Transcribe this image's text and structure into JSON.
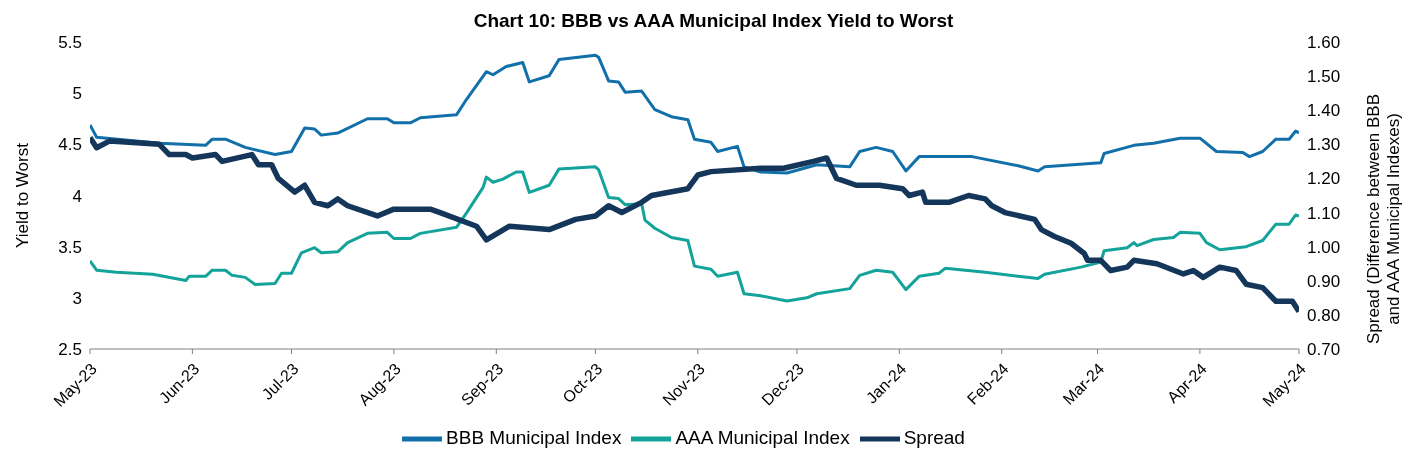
{
  "chart_data": {
    "type": "line",
    "title": "Chart 10: BBB vs AAA Municipal Index Yield to Worst",
    "ylabel": "Yield to Worst",
    "y2label": "Spread (Difference between BBB and AAA Municipal Indexes)",
    "xlim": [
      "2023-05-01",
      "2024-05-01"
    ],
    "xticks": [
      {
        "value": "2023-05-01",
        "label": "May-23"
      },
      {
        "value": "2023-06-01",
        "label": "Jun-23"
      },
      {
        "value": "2023-07-01",
        "label": "Jul-23"
      },
      {
        "value": "2023-08-01",
        "label": "Aug-23"
      },
      {
        "value": "2023-09-01",
        "label": "Sep-23"
      },
      {
        "value": "2023-10-01",
        "label": "Oct-23"
      },
      {
        "value": "2023-11-01",
        "label": "Nov-23"
      },
      {
        "value": "2023-12-01",
        "label": "Dec-23"
      },
      {
        "value": "2024-01-01",
        "label": "Jan-24"
      },
      {
        "value": "2024-02-01",
        "label": "Feb-24"
      },
      {
        "value": "2024-03-01",
        "label": "Mar-24"
      },
      {
        "value": "2024-04-01",
        "label": "Apr-24"
      },
      {
        "value": "2024-05-01",
        "label": "May-24"
      }
    ],
    "ylim": [
      2.5,
      5.5
    ],
    "yticks": [
      2.5,
      3,
      3.5,
      4,
      4.5,
      5,
      5.5
    ],
    "y2lim": [
      0.7,
      1.6
    ],
    "y2ticks": [
      {
        "value": 0.7,
        "label": "0.70"
      },
      {
        "value": 0.8,
        "label": "0.80"
      },
      {
        "value": 0.9,
        "label": "0.90"
      },
      {
        "value": 1.0,
        "label": "1.00"
      },
      {
        "value": 1.1,
        "label": "1.10"
      },
      {
        "value": 1.2,
        "label": "1.20"
      },
      {
        "value": 1.3,
        "label": "1.30"
      },
      {
        "value": 1.4,
        "label": "1.40"
      },
      {
        "value": 1.5,
        "label": "1.50"
      },
      {
        "value": 1.6,
        "label": "1.60"
      }
    ],
    "grid": false,
    "legend": "bottom",
    "marker": "none",
    "line_style": "solid",
    "series": [
      {
        "name": "BBB Municipal Index",
        "color": "#1170aa",
        "x": [
          "2023-05-01",
          "2023-05-03",
          "2023-05-22",
          "2023-06-05",
          "2023-06-07",
          "2023-06-11",
          "2023-06-17",
          "2023-06-26",
          "2023-07-01",
          "2023-07-05",
          "2023-07-08",
          "2023-07-10",
          "2023-07-15",
          "2023-07-24",
          "2023-07-30",
          "2023-08-01",
          "2023-08-06",
          "2023-08-09",
          "2023-08-20",
          "2023-08-23",
          "2023-08-29",
          "2023-08-31",
          "2023-09-04",
          "2023-09-09",
          "2023-09-11",
          "2023-09-17",
          "2023-09-20",
          "2023-10-01",
          "2023-10-02",
          "2023-10-05",
          "2023-10-08",
          "2023-10-10",
          "2023-10-15",
          "2023-10-19",
          "2023-10-24",
          "2023-10-29",
          "2023-10-31",
          "2023-11-05",
          "2023-11-07",
          "2023-11-13",
          "2023-11-15",
          "2023-11-20",
          "2023-11-28",
          "2023-12-07",
          "2023-12-17",
          "2023-12-20",
          "2023-12-25",
          "2023-12-30",
          "2024-01-03",
          "2024-01-07",
          "2024-01-23",
          "2024-02-06",
          "2024-02-12",
          "2024-02-14",
          "2024-03-02",
          "2024-03-03",
          "2024-03-12",
          "2024-03-18",
          "2024-03-26",
          "2024-04-01",
          "2024-04-06",
          "2024-04-14",
          "2024-04-16",
          "2024-04-20",
          "2024-04-24",
          "2024-04-28",
          "2024-04-30",
          "2024-05-01"
        ],
        "values": [
          4.69,
          4.57,
          4.51,
          4.49,
          4.55,
          4.55,
          4.47,
          4.4,
          4.43,
          4.66,
          4.65,
          4.59,
          4.61,
          4.75,
          4.75,
          4.71,
          4.71,
          4.76,
          4.79,
          4.94,
          5.21,
          5.18,
          5.26,
          5.3,
          5.11,
          5.17,
          5.33,
          5.37,
          5.35,
          5.12,
          5.11,
          5.01,
          5.02,
          4.84,
          4.77,
          4.74,
          4.55,
          4.52,
          4.43,
          4.48,
          4.28,
          4.23,
          4.22,
          4.3,
          4.28,
          4.43,
          4.47,
          4.43,
          4.24,
          4.38,
          4.38,
          4.29,
          4.24,
          4.28,
          4.32,
          4.41,
          4.49,
          4.51,
          4.56,
          4.56,
          4.43,
          4.42,
          4.38,
          4.43,
          4.55,
          4.55,
          4.63,
          4.61
        ]
      },
      {
        "name": "AAA Municipal Index",
        "color": "#14a39a",
        "x": [
          "2023-05-01",
          "2023-05-03",
          "2023-05-09",
          "2023-05-20",
          "2023-05-30",
          "2023-05-31",
          "2023-06-05",
          "2023-06-07",
          "2023-06-11",
          "2023-06-13",
          "2023-06-17",
          "2023-06-20",
          "2023-06-26",
          "2023-06-28",
          "2023-07-01",
          "2023-07-04",
          "2023-07-08",
          "2023-07-10",
          "2023-07-15",
          "2023-07-18",
          "2023-07-24",
          "2023-07-30",
          "2023-08-01",
          "2023-08-06",
          "2023-08-09",
          "2023-08-20",
          "2023-08-23",
          "2023-08-28",
          "2023-08-29",
          "2023-08-31",
          "2023-09-03",
          "2023-09-07",
          "2023-09-09",
          "2023-09-11",
          "2023-09-17",
          "2023-09-20",
          "2023-10-01",
          "2023-10-02",
          "2023-10-05",
          "2023-10-08",
          "2023-10-10",
          "2023-10-15",
          "2023-10-16",
          "2023-10-19",
          "2023-10-24",
          "2023-10-29",
          "2023-10-31",
          "2023-11-05",
          "2023-11-07",
          "2023-11-13",
          "2023-11-15",
          "2023-11-20",
          "2023-11-28",
          "2023-12-04",
          "2023-12-07",
          "2023-12-17",
          "2023-12-20",
          "2023-12-25",
          "2023-12-30",
          "2024-01-03",
          "2024-01-07",
          "2024-01-13",
          "2024-01-15",
          "2024-01-27",
          "2024-02-06",
          "2024-02-12",
          "2024-02-14",
          "2024-02-25",
          "2024-03-02",
          "2024-03-03",
          "2024-03-10",
          "2024-03-12",
          "2024-03-13",
          "2024-03-18",
          "2024-03-24",
          "2024-03-26",
          "2024-04-01",
          "2024-04-03",
          "2024-04-07",
          "2024-04-15",
          "2024-04-20",
          "2024-04-24",
          "2024-04-28",
          "2024-04-30",
          "2024-05-01"
        ],
        "values": [
          3.36,
          3.27,
          3.25,
          3.23,
          3.17,
          3.21,
          3.21,
          3.27,
          3.27,
          3.22,
          3.2,
          3.13,
          3.14,
          3.24,
          3.24,
          3.44,
          3.49,
          3.44,
          3.45,
          3.54,
          3.63,
          3.64,
          3.58,
          3.58,
          3.63,
          3.69,
          3.83,
          4.08,
          4.18,
          4.13,
          4.16,
          4.23,
          4.23,
          4.03,
          4.1,
          4.26,
          4.28,
          4.25,
          3.98,
          3.97,
          3.91,
          3.92,
          3.76,
          3.68,
          3.59,
          3.56,
          3.31,
          3.28,
          3.21,
          3.25,
          3.04,
          3.02,
          2.97,
          3.0,
          3.04,
          3.09,
          3.22,
          3.27,
          3.25,
          3.08,
          3.21,
          3.24,
          3.29,
          3.25,
          3.21,
          3.19,
          3.23,
          3.3,
          3.35,
          3.46,
          3.49,
          3.54,
          3.51,
          3.57,
          3.59,
          3.64,
          3.63,
          3.54,
          3.47,
          3.5,
          3.56,
          3.72,
          3.72,
          3.81,
          3.8
        ]
      },
      {
        "name": "Spread",
        "color": "#14365a",
        "axis": "y2",
        "x": [
          "2023-05-01",
          "2023-05-03",
          "2023-05-07",
          "2023-05-22",
          "2023-05-25",
          "2023-05-30",
          "2023-06-01",
          "2023-06-08",
          "2023-06-10",
          "2023-06-19",
          "2023-06-21",
          "2023-06-25",
          "2023-06-27",
          "2023-07-02",
          "2023-07-05",
          "2023-07-08",
          "2023-07-12",
          "2023-07-15",
          "2023-07-18",
          "2023-07-27",
          "2023-08-01",
          "2023-08-12",
          "2023-08-15",
          "2023-08-26",
          "2023-08-29",
          "2023-09-05",
          "2023-09-17",
          "2023-09-25",
          "2023-10-01",
          "2023-10-05",
          "2023-10-09",
          "2023-10-15",
          "2023-10-18",
          "2023-10-29",
          "2023-11-01",
          "2023-11-05",
          "2023-11-20",
          "2023-11-27",
          "2023-12-06",
          "2023-12-10",
          "2023-12-13",
          "2023-12-19",
          "2023-12-26",
          "2024-01-02",
          "2024-01-04",
          "2024-01-08",
          "2024-01-09",
          "2024-01-16",
          "2024-01-22",
          "2024-01-27",
          "2024-01-29",
          "2024-02-02",
          "2024-02-11",
          "2024-02-13",
          "2024-02-17",
          "2024-02-22",
          "2024-02-26",
          "2024-02-27",
          "2024-03-02",
          "2024-03-05",
          "2024-03-10",
          "2024-03-12",
          "2024-03-19",
          "2024-03-27",
          "2024-03-30",
          "2024-04-02",
          "2024-04-07",
          "2024-04-12",
          "2024-04-15",
          "2024-04-20",
          "2024-04-24",
          "2024-04-29",
          "2024-05-01"
        ],
        "values": [
          1.32,
          1.29,
          1.31,
          1.3,
          1.27,
          1.27,
          1.26,
          1.27,
          1.25,
          1.27,
          1.24,
          1.24,
          1.2,
          1.16,
          1.18,
          1.13,
          1.12,
          1.14,
          1.12,
          1.09,
          1.11,
          1.11,
          1.1,
          1.06,
          1.02,
          1.06,
          1.05,
          1.08,
          1.09,
          1.12,
          1.1,
          1.13,
          1.15,
          1.17,
          1.21,
          1.22,
          1.23,
          1.23,
          1.25,
          1.26,
          1.2,
          1.18,
          1.18,
          1.17,
          1.15,
          1.16,
          1.13,
          1.13,
          1.15,
          1.14,
          1.12,
          1.1,
          1.08,
          1.05,
          1.03,
          1.01,
          0.98,
          0.96,
          0.96,
          0.93,
          0.94,
          0.96,
          0.95,
          0.92,
          0.93,
          0.91,
          0.94,
          0.93,
          0.89,
          0.88,
          0.84,
          0.84,
          0.81
        ]
      }
    ]
  }
}
